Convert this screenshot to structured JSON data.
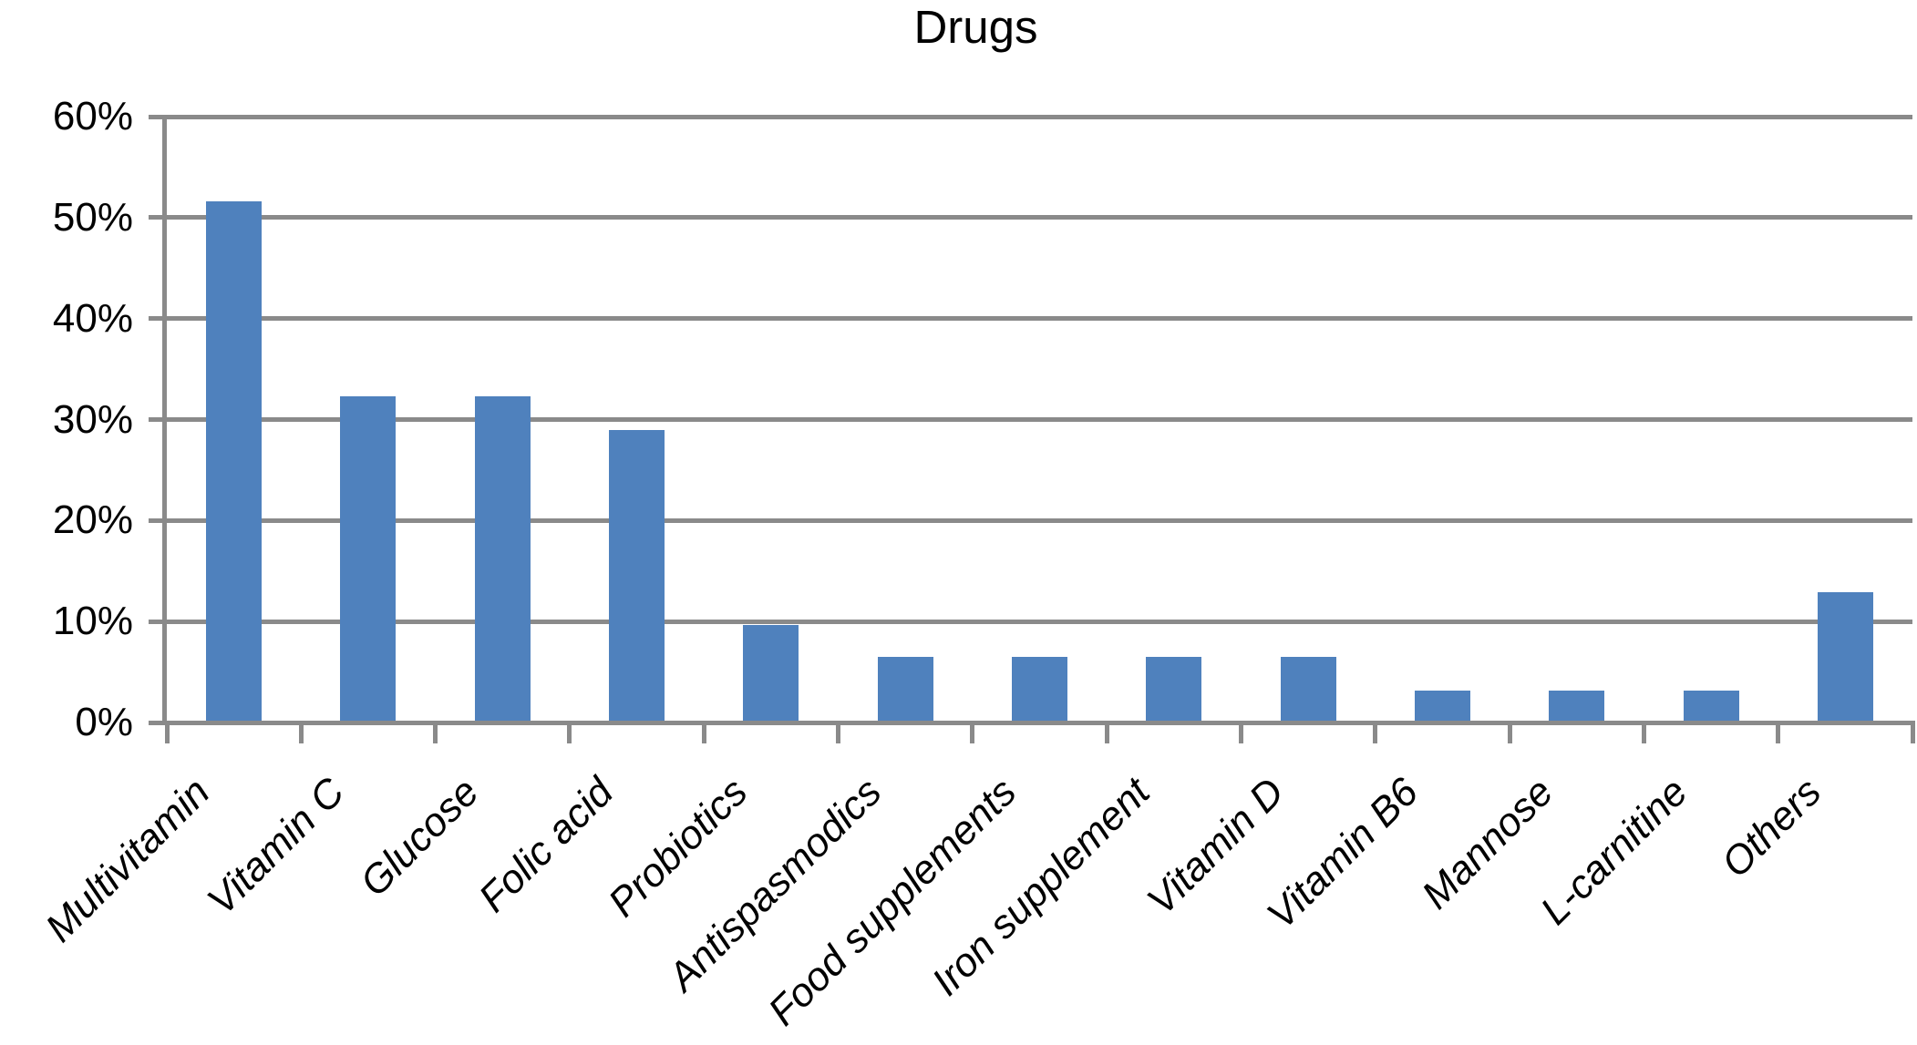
{
  "chart_data": {
    "type": "bar",
    "title": "Drugs",
    "categories": [
      "Multivitamin",
      "Vitamin C",
      "Glucose",
      "Folic acid",
      "Probiotics",
      "Antispasmodics",
      "Food supplements",
      "Iron supplement",
      "Vitamin D",
      "Vitamin B6",
      "Mannose",
      "L-carnitine",
      "Others"
    ],
    "values": [
      51.6,
      32.3,
      32.3,
      29.0,
      9.7,
      6.5,
      6.5,
      6.5,
      6.5,
      3.2,
      3.2,
      3.2,
      12.9
    ],
    "unit": "%",
    "xlabel": "",
    "ylabel": "",
    "ylim": [
      0,
      60
    ],
    "y_tick_step": 10,
    "y_tick_labels": [
      "0%",
      "10%",
      "20%",
      "30%",
      "40%",
      "50%",
      "60%"
    ],
    "grid": true,
    "legend_position": "none",
    "bar_color": "#4F81BD",
    "grid_color": "#8A8A8A",
    "text_color": "#000000"
  }
}
